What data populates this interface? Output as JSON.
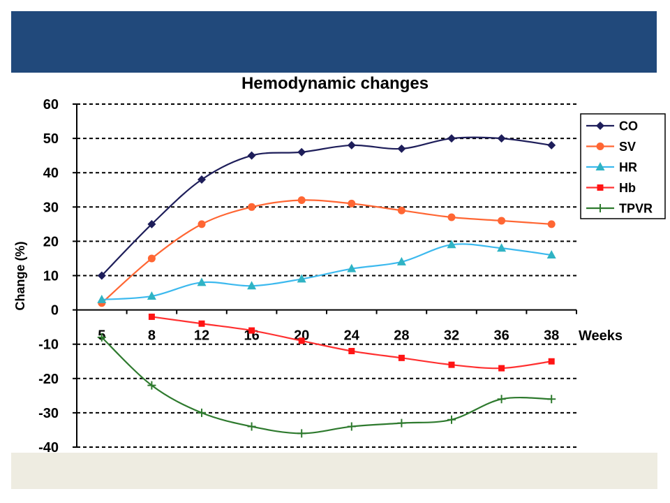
{
  "slide": {
    "header_bar_color": "#21497b",
    "footer_bar_color": "#eeece1"
  },
  "chart_data": {
    "type": "line",
    "title": "Hemodynamic changes",
    "xlabel": "Weeks",
    "ylabel": "Change (%)",
    "categories": [
      "5",
      "8",
      "12",
      "16",
      "20",
      "24",
      "28",
      "32",
      "36",
      "38"
    ],
    "ylim": [
      -40,
      60
    ],
    "yticks": [
      60,
      50,
      40,
      30,
      20,
      10,
      0,
      -10,
      -20,
      -30,
      -40
    ],
    "grid": true,
    "grid_style": "dashed",
    "legend_position": "right",
    "smooth_lines": true,
    "series": [
      {
        "name": "CO",
        "color": "#1e1e5a",
        "marker_color": "#1e1e5a",
        "marker": "diamond",
        "values": [
          10,
          25,
          38,
          45,
          46,
          48,
          47,
          50,
          50,
          48
        ]
      },
      {
        "name": "SV",
        "color": "#ff6633",
        "marker_color": "#ff6633",
        "marker": "circle",
        "values": [
          2,
          15,
          25,
          30,
          32,
          31,
          29,
          27,
          26,
          25
        ]
      },
      {
        "name": "HR",
        "color": "#3cb9ee",
        "marker_color": "#2fb3c4",
        "marker": "triangle",
        "values": [
          3,
          4,
          8,
          7,
          9,
          12,
          14,
          19,
          18,
          16
        ]
      },
      {
        "name": "Hb",
        "color": "#ff3030",
        "marker_color": "#ff1414",
        "marker": "square",
        "values": [
          null,
          -2,
          -4,
          -6,
          -9,
          -12,
          -14,
          -16,
          -17,
          -15
        ]
      },
      {
        "name": "TPVR",
        "color": "#2e7a2e",
        "marker_color": "#2e7a2e",
        "marker": "plus",
        "values": [
          -8,
          -22,
          -30,
          -34,
          -36,
          -34,
          -33,
          -32,
          -26,
          -26
        ]
      }
    ]
  }
}
